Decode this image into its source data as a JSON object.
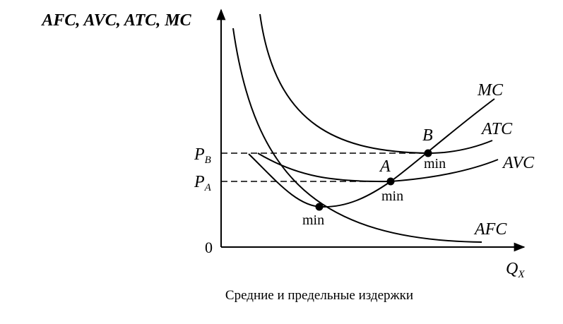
{
  "axes": {
    "y_label": "AFC, AVC, ATC, MC",
    "x_label": {
      "main": "Q",
      "sub": "X"
    },
    "origin": "0"
  },
  "levels": [
    {
      "main": "P",
      "sub": "B"
    },
    {
      "main": "P",
      "sub": "A"
    }
  ],
  "curves": [
    "MC",
    "ATC",
    "AVC",
    "AFC"
  ],
  "points": [
    {
      "label": "B",
      "note": "min"
    },
    {
      "label": "A",
      "note": "min"
    },
    {
      "note": "min"
    }
  ],
  "caption": "Средние и предельные издержки"
}
